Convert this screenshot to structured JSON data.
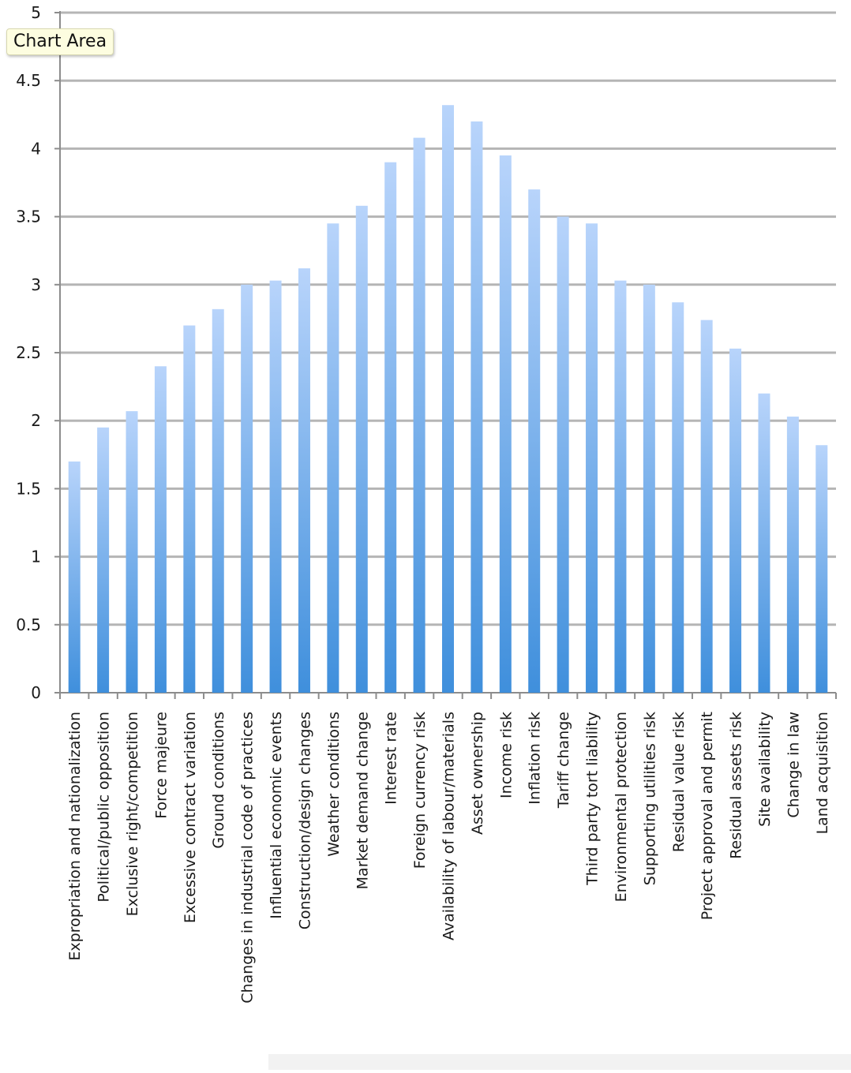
{
  "tooltip": {
    "label": "Chart Area"
  },
  "chart_data": {
    "type": "bar",
    "title": "",
    "xlabel": "",
    "ylabel": "",
    "ylim": [
      0,
      5
    ],
    "yticks": [
      0,
      0.5,
      1,
      1.5,
      2,
      2.5,
      3,
      3.5,
      4,
      4.5,
      5
    ],
    "ytick_labels": [
      "0",
      "0.5",
      "1",
      "1.5",
      "2",
      "2.5",
      "3",
      "3.5",
      "4",
      "4.5",
      "5"
    ],
    "grid": true,
    "legend": "none",
    "bar_color_top": "#b8d4fb",
    "bar_color_bottom": "#3f8fdc",
    "categories": [
      "Expropriation and nationalization",
      "Political/public opposition",
      "Exclusive right/competition",
      "Force majeure",
      "Excessive contract variation",
      "Ground conditions",
      "Changes in industrial code of practices",
      "Influential economic events",
      "Construction/design changes",
      "Weather conditions",
      "Market demand change",
      "Interest rate",
      "Foreign currency risk",
      "Availability of labour/materials",
      "Asset ownership",
      "Income risk",
      "Inflation risk",
      "Tariff change",
      "Third party tort liability",
      "Environmental protection",
      "Supporting utilities risk",
      "Residual value risk",
      "Project approval and permit",
      "Residual assets risk",
      "Site availability",
      "Change in law",
      "Land acquisition"
    ],
    "values": [
      1.7,
      1.95,
      2.07,
      2.4,
      2.7,
      2.82,
      3.0,
      3.03,
      3.12,
      3.45,
      3.58,
      3.9,
      4.08,
      4.32,
      4.2,
      3.95,
      3.7,
      3.5,
      3.45,
      3.03,
      3.0,
      2.87,
      2.74,
      2.53,
      2.2,
      2.03,
      1.82
    ]
  }
}
